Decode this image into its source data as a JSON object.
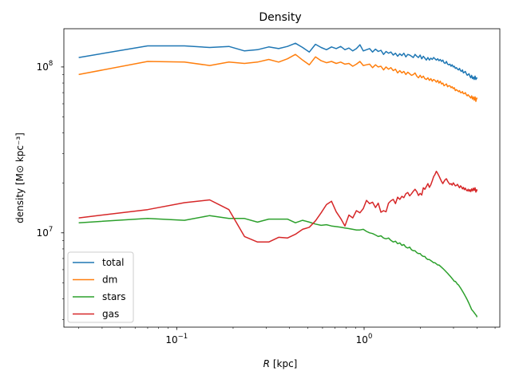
{
  "chart_data": {
    "type": "line",
    "title": "Density",
    "xlabel_italic": "R",
    "xlabel_rest": " [kpc]",
    "ylabel": "density [M⊙ kpc⁻³]",
    "xscale": "log",
    "yscale": "log",
    "xlim": [
      0.025,
      5.3
    ],
    "ylim": [
      2700000,
      170000000
    ],
    "grid": false,
    "legend_position": "lower-left",
    "x_ticks": [
      {
        "base": "10",
        "exp": "−1",
        "value": 0.1
      },
      {
        "base": "10",
        "exp": "0",
        "value": 1.0
      }
    ],
    "y_ticks": [
      {
        "base": "10",
        "exp": "7",
        "value": 10000000
      },
      {
        "base": "10",
        "exp": "8",
        "value": 100000000
      }
    ],
    "series": [
      {
        "name": "total",
        "color": "#1f77b4",
        "x": [
          0.03,
          0.07,
          0.11,
          0.15,
          0.19,
          0.23,
          0.27,
          0.31,
          0.35,
          0.39,
          0.43,
          0.47,
          0.51,
          0.55,
          0.59,
          0.63,
          0.67,
          0.71,
          0.75,
          0.79,
          0.83,
          0.87,
          0.91,
          0.95,
          0.99,
          1.03,
          1.07,
          1.11,
          1.15,
          1.19,
          1.23,
          1.27,
          1.31,
          1.35,
          1.39,
          1.43,
          1.47,
          1.51,
          1.55,
          1.59,
          1.63,
          1.67,
          1.71,
          1.75,
          1.79,
          1.83,
          1.87,
          1.91,
          1.95,
          1.99,
          2.03,
          2.07,
          2.11,
          2.15,
          2.19,
          2.23,
          2.27,
          2.31,
          2.35,
          2.39,
          2.43,
          2.47,
          2.51,
          2.55,
          2.59,
          2.63,
          2.67,
          2.71,
          2.75,
          2.79,
          2.83,
          2.87,
          2.91,
          2.95,
          2.99,
          3.03,
          3.07,
          3.11,
          3.15,
          3.19,
          3.23,
          3.27,
          3.31,
          3.35,
          3.39,
          3.43,
          3.47,
          3.51,
          3.55,
          3.59,
          3.63,
          3.67,
          3.71,
          3.75,
          3.79,
          3.83,
          3.87,
          3.91,
          3.95,
          3.99,
          4.0
        ],
        "y": [
          114000000,
          134000000,
          134000000,
          131000000,
          133000000,
          125000000,
          127000000,
          132000000,
          129000000,
          133000000,
          139000000,
          131000000,
          123000000,
          137000000,
          131000000,
          127000000,
          132000000,
          129000000,
          133000000,
          127000000,
          130000000,
          125000000,
          129000000,
          136000000,
          125000000,
          127000000,
          129000000,
          123000000,
          128000000,
          124000000,
          126000000,
          119000000,
          124000000,
          121000000,
          123000000,
          118000000,
          121000000,
          116000000,
          120000000,
          117000000,
          121000000,
          115000000,
          119000000,
          118000000,
          116000000,
          114000000,
          119000000,
          116000000,
          114000000,
          118000000,
          112000000,
          116000000,
          113000000,
          110000000,
          114000000,
          110000000,
          113000000,
          111000000,
          114000000,
          112000000,
          110000000,
          112000000,
          109000000,
          111000000,
          108000000,
          110000000,
          106000000,
          105000000,
          108000000,
          104000000,
          103000000,
          104000000,
          101000000,
          103000000,
          100000000,
          101000000,
          98000000,
          99000000,
          97000000,
          96000000,
          98000000,
          95000000,
          94000000,
          96000000,
          92000000,
          93000000,
          94000000,
          91000000,
          89000000,
          90000000,
          91000000,
          88000000,
          86000000,
          89000000,
          85000000,
          87000000,
          84000000,
          88000000,
          84000000,
          86000000,
          85000000
        ]
      },
      {
        "name": "dm",
        "color": "#ff7f0e",
        "x": [
          0.03,
          0.07,
          0.11,
          0.15,
          0.19,
          0.23,
          0.27,
          0.31,
          0.35,
          0.39,
          0.43,
          0.47,
          0.51,
          0.55,
          0.59,
          0.63,
          0.67,
          0.71,
          0.75,
          0.79,
          0.83,
          0.87,
          0.91,
          0.95,
          0.99,
          1.03,
          1.07,
          1.11,
          1.15,
          1.19,
          1.23,
          1.27,
          1.31,
          1.35,
          1.39,
          1.43,
          1.47,
          1.51,
          1.55,
          1.59,
          1.63,
          1.67,
          1.71,
          1.75,
          1.79,
          1.83,
          1.87,
          1.91,
          1.95,
          1.99,
          2.03,
          2.07,
          2.11,
          2.15,
          2.19,
          2.23,
          2.27,
          2.31,
          2.35,
          2.39,
          2.43,
          2.47,
          2.51,
          2.55,
          2.59,
          2.63,
          2.67,
          2.71,
          2.75,
          2.79,
          2.83,
          2.87,
          2.91,
          2.95,
          2.99,
          3.03,
          3.07,
          3.11,
          3.15,
          3.19,
          3.23,
          3.27,
          3.31,
          3.35,
          3.39,
          3.43,
          3.47,
          3.51,
          3.55,
          3.59,
          3.63,
          3.67,
          3.71,
          3.75,
          3.79,
          3.83,
          3.87,
          3.91,
          3.95,
          3.99,
          4.0
        ],
        "y": [
          90000000,
          108000000,
          107000000,
          102000000,
          107000000,
          105000000,
          107000000,
          111000000,
          107000000,
          112000000,
          119000000,
          110000000,
          103000000,
          115000000,
          109000000,
          106000000,
          108000000,
          105000000,
          107000000,
          104000000,
          105000000,
          101000000,
          104000000,
          108000000,
          102000000,
          103000000,
          104000000,
          99000000,
          103000000,
          100000000,
          101000000,
          96000000,
          100000000,
          97000000,
          99000000,
          95000000,
          97000000,
          92000000,
          95000000,
          92000000,
          94000000,
          90000000,
          93000000,
          91000000,
          89000000,
          90000000,
          92000000,
          88000000,
          86000000,
          89000000,
          86000000,
          88000000,
          85000000,
          84000000,
          86000000,
          83000000,
          85000000,
          82000000,
          84000000,
          83000000,
          81000000,
          83000000,
          80000000,
          82000000,
          79000000,
          80000000,
          77000000,
          78000000,
          79000000,
          76000000,
          77000000,
          77000000,
          75000000,
          76000000,
          74000000,
          75000000,
          72000000,
          73000000,
          72000000,
          71000000,
          72000000,
          70000000,
          70000000,
          71000000,
          69000000,
          69000000,
          70000000,
          68000000,
          67000000,
          68000000,
          67000000,
          66000000,
          65000000,
          67000000,
          64000000,
          66000000,
          63000000,
          66000000,
          62000000,
          65000000,
          64000000
        ]
      },
      {
        "name": "stars",
        "color": "#2ca02c",
        "x": [
          0.03,
          0.07,
          0.11,
          0.15,
          0.19,
          0.23,
          0.27,
          0.31,
          0.35,
          0.39,
          0.43,
          0.47,
          0.51,
          0.55,
          0.59,
          0.63,
          0.67,
          0.71,
          0.75,
          0.79,
          0.83,
          0.87,
          0.91,
          0.95,
          0.99,
          1.03,
          1.07,
          1.11,
          1.15,
          1.19,
          1.23,
          1.27,
          1.31,
          1.35,
          1.39,
          1.43,
          1.47,
          1.51,
          1.55,
          1.59,
          1.63,
          1.67,
          1.71,
          1.75,
          1.79,
          1.83,
          1.87,
          1.91,
          1.95,
          1.99,
          2.03,
          2.07,
          2.11,
          2.15,
          2.19,
          2.23,
          2.27,
          2.31,
          2.35,
          2.39,
          2.43,
          2.47,
          2.51,
          2.55,
          2.59,
          2.63,
          2.67,
          2.71,
          2.75,
          2.79,
          2.83,
          2.87,
          2.91,
          2.95,
          2.99,
          3.03,
          3.07,
          3.11,
          3.15,
          3.19,
          3.23,
          3.27,
          3.31,
          3.35,
          3.39,
          3.43,
          3.47,
          3.51,
          3.55,
          3.59,
          3.63,
          3.67,
          3.71,
          3.75,
          3.79,
          3.83,
          3.87,
          3.91,
          3.95,
          3.99,
          4.0
        ],
        "y": [
          11500000,
          12200000,
          11900000,
          12700000,
          12200000,
          12200000,
          11600000,
          12100000,
          12100000,
          12100000,
          11500000,
          11900000,
          11600000,
          11300000,
          11100000,
          11200000,
          11000000,
          10900000,
          10800000,
          10700000,
          10600000,
          10500000,
          10400000,
          10400000,
          10500000,
          10200000,
          10000000,
          9900000,
          9700000,
          9500000,
          9600000,
          9300000,
          9200000,
          9300000,
          9000000,
          8800000,
          8900000,
          8600000,
          8700000,
          8400000,
          8500000,
          8200000,
          8100000,
          8200000,
          7900000,
          7800000,
          7800000,
          7600000,
          7500000,
          7500000,
          7300000,
          7200000,
          7200000,
          7000000,
          6900000,
          6900000,
          6800000,
          6700000,
          6600000,
          6600000,
          6500000,
          6400000,
          6400000,
          6300000,
          6200000,
          6100000,
          6000000,
          5900000,
          5800000,
          5700000,
          5600000,
          5500000,
          5400000,
          5300000,
          5200000,
          5100000,
          5100000,
          5000000,
          4900000,
          4850000,
          4750000,
          4650000,
          4550000,
          4450000,
          4350000,
          4250000,
          4150000,
          4050000,
          3950000,
          3850000,
          3750000,
          3650000,
          3550000,
          3450000,
          3400000,
          3350000,
          3300000,
          3250000,
          3200000,
          3150000,
          3100000
        ]
      },
      {
        "name": "gas",
        "color": "#d62728",
        "x": [
          0.03,
          0.07,
          0.11,
          0.15,
          0.19,
          0.23,
          0.27,
          0.31,
          0.35,
          0.39,
          0.43,
          0.47,
          0.51,
          0.55,
          0.59,
          0.63,
          0.67,
          0.71,
          0.75,
          0.79,
          0.83,
          0.87,
          0.91,
          0.95,
          0.99,
          1.03,
          1.07,
          1.11,
          1.15,
          1.19,
          1.23,
          1.27,
          1.31,
          1.35,
          1.39,
          1.43,
          1.47,
          1.51,
          1.55,
          1.59,
          1.63,
          1.67,
          1.71,
          1.75,
          1.79,
          1.83,
          1.87,
          1.91,
          1.95,
          1.99,
          2.03,
          2.07,
          2.11,
          2.15,
          2.19,
          2.23,
          2.27,
          2.31,
          2.35,
          2.39,
          2.43,
          2.47,
          2.51,
          2.55,
          2.59,
          2.63,
          2.67,
          2.71,
          2.75,
          2.79,
          2.83,
          2.87,
          2.91,
          2.95,
          2.99,
          3.03,
          3.07,
          3.11,
          3.15,
          3.19,
          3.23,
          3.27,
          3.31,
          3.35,
          3.39,
          3.43,
          3.47,
          3.51,
          3.55,
          3.59,
          3.63,
          3.67,
          3.71,
          3.75,
          3.79,
          3.83,
          3.87,
          3.91,
          3.95,
          3.99,
          4.0
        ],
        "y": [
          12300000,
          13800000,
          15200000,
          15800000,
          13800000,
          9500000,
          8800000,
          8800000,
          9400000,
          9300000,
          9800000,
          10500000,
          10800000,
          11800000,
          13200000,
          14800000,
          15500000,
          13400000,
          12200000,
          11000000,
          12800000,
          12300000,
          13600000,
          13200000,
          14000000,
          15700000,
          15000000,
          15300000,
          14200000,
          15100000,
          13300000,
          13600000,
          13400000,
          15100000,
          15600000,
          15900000,
          15000000,
          16400000,
          15900000,
          16600000,
          16300000,
          17200000,
          17500000,
          16700000,
          17200000,
          17800000,
          18300000,
          17700000,
          16800000,
          17300000,
          16900000,
          18700000,
          18300000,
          19000000,
          19800000,
          18800000,
          19500000,
          20600000,
          21800000,
          22500000,
          23500000,
          22800000,
          22000000,
          21200000,
          20400000,
          19800000,
          20400000,
          20900000,
          21200000,
          20500000,
          20000000,
          19600000,
          19800000,
          19400000,
          20000000,
          19600000,
          19200000,
          19300000,
          19600000,
          19100000,
          18700000,
          19200000,
          18900000,
          18400000,
          18800000,
          18200000,
          18600000,
          18100000,
          17900000,
          18300000,
          17800000,
          18200000,
          17700000,
          18400000,
          17900000,
          18600000,
          18000000,
          18700000,
          17600000,
          18200000,
          17800000
        ]
      }
    ]
  }
}
